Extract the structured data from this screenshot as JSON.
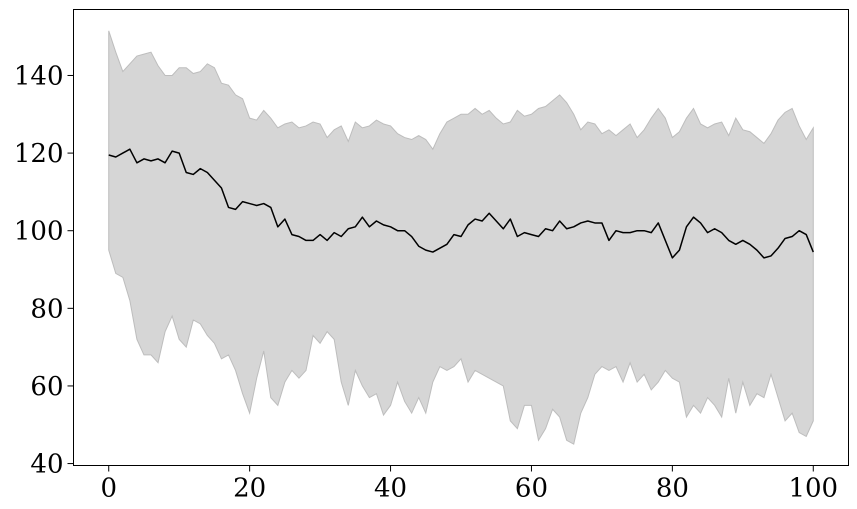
{
  "chart_data": {
    "type": "line",
    "title": "",
    "xlabel": "",
    "ylabel": "",
    "xlim": [
      -5,
      105
    ],
    "ylim": [
      39.5,
      157
    ],
    "x_ticks": [
      0,
      20,
      40,
      60,
      80,
      100
    ],
    "x_tick_labels": [
      "0",
      "20",
      "40",
      "60",
      "80",
      "100"
    ],
    "y_ticks": [
      40,
      60,
      80,
      100,
      120,
      140
    ],
    "y_tick_labels": [
      "40",
      "60",
      "80",
      "100",
      "120",
      "140"
    ],
    "grid": false,
    "legend": "none",
    "colors": {
      "line": "#000000",
      "band": "#d6d6d6",
      "band_edge": "#bdbdbd"
    },
    "series": [
      {
        "kind": "line",
        "x": [
          0,
          1,
          2,
          3,
          4,
          5,
          6,
          7,
          8,
          9,
          10,
          11,
          12,
          13,
          14,
          15,
          16,
          17,
          18,
          19,
          20,
          21,
          22,
          23,
          24,
          25,
          26,
          27,
          28,
          29,
          30,
          31,
          32,
          33,
          34,
          35,
          36,
          37,
          38,
          39,
          40,
          41,
          42,
          43,
          44,
          45,
          46,
          47,
          48,
          49,
          50,
          51,
          52,
          53,
          54,
          55,
          56,
          57,
          58,
          59,
          60,
          61,
          62,
          63,
          64,
          65,
          66,
          67,
          68,
          69,
          70,
          71,
          72,
          73,
          74,
          75,
          76,
          77,
          78,
          79,
          80,
          81,
          82,
          83,
          84,
          85,
          86,
          87,
          88,
          89,
          90,
          91,
          92,
          93,
          94,
          95,
          96,
          97,
          98,
          99,
          100
        ],
        "y": [
          119.5,
          119,
          120,
          121,
          117.5,
          118.5,
          118,
          118.5,
          117.5,
          120.5,
          120,
          115,
          114.5,
          116,
          115,
          113,
          111,
          106,
          105.5,
          107.5,
          107,
          106.5,
          107,
          106,
          101,
          103,
          99,
          98.5,
          97.5,
          97.5,
          99,
          97.5,
          99.5,
          98.5,
          100.5,
          101,
          103.5,
          101,
          102.5,
          101.5,
          101,
          100,
          100,
          98.5,
          96,
          95,
          94.5,
          95.5,
          96.5,
          99,
          98.5,
          101.5,
          103,
          102.5,
          104.5,
          102.5,
          100.5,
          103,
          98.5,
          99.5,
          99,
          98.5,
          100.5,
          100,
          102.5,
          100.5,
          101,
          102,
          102.5,
          102,
          102,
          97.5,
          100,
          99.5,
          99.5,
          100,
          100,
          99.5,
          102,
          97.5,
          93,
          95,
          101,
          103.5,
          102,
          99.5,
          100.5,
          99.5,
          97.5,
          96.5,
          97.5,
          96.5,
          95,
          93,
          93.5,
          95.5,
          98,
          98.5,
          100,
          99,
          94.5
        ]
      },
      {
        "kind": "band",
        "x": [
          0,
          1,
          2,
          3,
          4,
          5,
          6,
          7,
          8,
          9,
          10,
          11,
          12,
          13,
          14,
          15,
          16,
          17,
          18,
          19,
          20,
          21,
          22,
          23,
          24,
          25,
          26,
          27,
          28,
          29,
          30,
          31,
          32,
          33,
          34,
          35,
          36,
          37,
          38,
          39,
          40,
          41,
          42,
          43,
          44,
          45,
          46,
          47,
          48,
          49,
          50,
          51,
          52,
          53,
          54,
          55,
          56,
          57,
          58,
          59,
          60,
          61,
          62,
          63,
          64,
          65,
          66,
          67,
          68,
          69,
          70,
          71,
          72,
          73,
          74,
          75,
          76,
          77,
          78,
          79,
          80,
          81,
          82,
          83,
          84,
          85,
          86,
          87,
          88,
          89,
          90,
          91,
          92,
          93,
          94,
          95,
          96,
          97,
          98,
          99,
          100
        ],
        "upper": [
          151.5,
          146,
          141,
          143,
          145,
          145.5,
          146,
          142.5,
          140,
          140,
          142,
          142,
          140.5,
          141,
          143,
          142,
          138,
          137.5,
          135,
          134,
          129,
          128.5,
          131,
          129,
          126.5,
          127.5,
          128,
          126.5,
          127,
          128,
          127.5,
          124,
          126,
          127,
          123,
          128,
          126.5,
          127,
          128.5,
          127.5,
          127,
          125,
          124,
          123.5,
          124.5,
          123.5,
          121,
          125,
          128,
          129,
          130,
          130,
          131.5,
          130,
          131,
          129,
          127.5,
          128,
          131,
          129.5,
          130,
          131.5,
          132,
          133.5,
          135,
          133,
          130,
          126,
          128,
          127.5,
          125,
          126,
          124.5,
          126,
          127.5,
          124,
          126,
          129,
          131.5,
          129,
          124,
          125.5,
          129,
          131.5,
          127.5,
          126.5,
          127.5,
          128,
          124.5,
          129,
          126,
          125.5,
          124,
          122.5,
          125,
          128.5,
          130.5,
          131.5,
          127,
          123.5,
          126.5
        ],
        "lower": [
          95,
          89,
          88,
          82,
          72,
          68,
          68,
          66,
          74,
          78,
          72,
          70,
          77,
          76,
          73,
          71,
          67,
          68,
          64,
          58,
          53,
          62,
          69,
          57,
          55,
          61,
          64,
          62,
          64,
          73,
          71,
          74,
          72,
          61,
          55,
          64,
          60,
          57,
          58,
          52.5,
          55,
          61,
          56,
          53,
          57,
          53,
          61,
          65,
          64,
          65,
          67,
          61,
          64,
          63,
          62,
          61,
          60,
          51,
          49,
          55,
          55,
          46,
          49,
          54,
          52,
          46,
          45,
          53,
          57,
          63,
          65,
          64,
          65,
          61,
          66,
          61,
          63,
          59,
          61,
          64,
          62,
          61,
          52,
          55,
          53,
          57,
          55,
          52,
          62,
          53,
          61,
          55,
          58,
          57,
          63,
          57,
          51,
          53,
          48,
          47,
          51
        ]
      }
    ]
  }
}
